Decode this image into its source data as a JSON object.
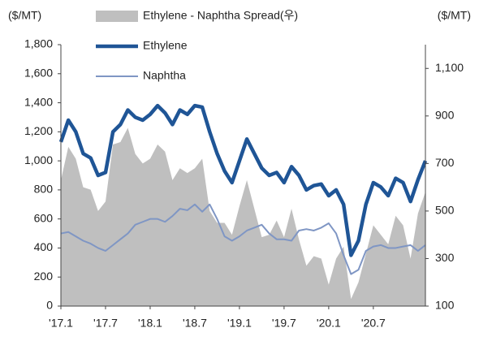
{
  "chart_data": {
    "type": "line",
    "y_label": "($/MT)",
    "y2_label": "($/MT)",
    "categories": [
      "'17.1",
      null,
      null,
      null,
      null,
      null,
      "'17.7",
      null,
      null,
      null,
      null,
      null,
      "'18.1",
      null,
      null,
      null,
      null,
      null,
      "'18.7",
      null,
      null,
      null,
      null,
      null,
      "'19.1",
      null,
      null,
      null,
      null,
      null,
      "'19.7",
      null,
      null,
      null,
      null,
      null,
      "'20.1",
      null,
      null,
      null,
      null,
      null,
      "'20.7",
      null,
      null,
      null,
      null,
      null,
      null,
      null
    ],
    "series": [
      {
        "name": "Ethylene - Naphtha Spread(우)",
        "color": "#bfbfbf",
        "kind": "area",
        "axis": "y2",
        "values": [
          630,
          770,
          720,
          600,
          590,
          500,
          540,
          780,
          790,
          850,
          740,
          700,
          720,
          780,
          750,
          630,
          680,
          660,
          680,
          720,
          500,
          450,
          450,
          400,
          520,
          630,
          510,
          390,
          400,
          460,
          390,
          510,
          380,
          270,
          310,
          300,
          190,
          300,
          350,
          130,
          200,
          320,
          440,
          400,
          360,
          480,
          440,
          300,
          490,
          580
        ]
      },
      {
        "name": "Ethylene",
        "color": "#1f5596",
        "kind": "line",
        "values": [
          1130,
          1280,
          1200,
          1050,
          1020,
          900,
          920,
          1200,
          1250,
          1350,
          1300,
          1280,
          1320,
          1380,
          1330,
          1250,
          1350,
          1320,
          1380,
          1370,
          1200,
          1050,
          930,
          850,
          1000,
          1150,
          1050,
          950,
          900,
          920,
          850,
          960,
          900,
          800,
          830,
          840,
          760,
          800,
          700,
          350,
          450,
          700,
          850,
          820,
          760,
          880,
          850,
          720,
          870,
          1000
        ]
      },
      {
        "name": "Naphtha",
        "color": "#7f96c4",
        "kind": "line",
        "values": [
          500,
          510,
          480,
          450,
          430,
          400,
          380,
          420,
          460,
          500,
          560,
          580,
          600,
          600,
          580,
          620,
          670,
          660,
          700,
          650,
          700,
          600,
          480,
          450,
          480,
          520,
          540,
          560,
          500,
          460,
          460,
          450,
          520,
          530,
          520,
          540,
          570,
          500,
          350,
          220,
          250,
          380,
          410,
          420,
          400,
          400,
          410,
          420,
          380,
          420
        ]
      }
    ],
    "ylim": [
      0,
      1800
    ],
    "yticks": [
      0,
      200,
      400,
      600,
      800,
      {
        "value": 1000,
        "label": "1,000"
      },
      {
        "value": 1200,
        "label": "1,200"
      },
      {
        "value": 1400,
        "label": "1,400"
      },
      {
        "value": 1600,
        "label": "1,600"
      },
      {
        "value": 1800,
        "label": "1,800"
      }
    ],
    "y2lim": [
      100,
      1200
    ],
    "y2ticks": [
      100,
      300,
      500,
      700,
      900,
      {
        "value": 1100,
        "label": "1,100"
      }
    ]
  }
}
